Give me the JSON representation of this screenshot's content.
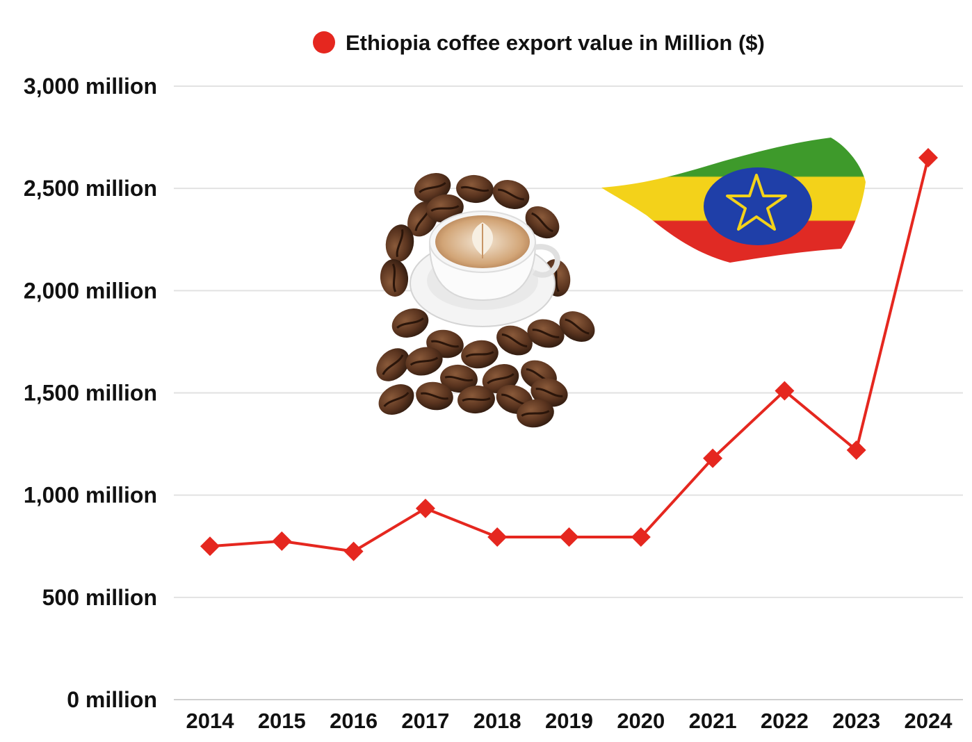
{
  "colors": {
    "series": "#e5271f",
    "grid": "#e2e2e2",
    "text": "#111111"
  },
  "icons": [
    "coffee-cup-with-beans-icon",
    "ethiopia-flag-icon"
  ],
  "chart_data": {
    "type": "line",
    "legend": {
      "label": "Ethiopia coffee export value in Million ($)",
      "position": "top"
    },
    "categories": [
      "2014",
      "2015",
      "2016",
      "2017",
      "2018",
      "2019",
      "2020",
      "2021",
      "2022",
      "2023",
      "2024"
    ],
    "series": [
      {
        "name": "Ethiopia coffee export value in Million ($)",
        "values": [
          750,
          775,
          725,
          935,
          795,
          795,
          795,
          1180,
          1510,
          1220,
          2650
        ]
      }
    ],
    "ylim": [
      0,
      3000
    ],
    "yticks": [
      0,
      500,
      1000,
      1500,
      2000,
      2500,
      3000
    ],
    "ytick_labels": [
      "0 million",
      "500 million",
      "1,000 million",
      "1,500 million",
      "2,000 million",
      "2,500 million",
      "3,000 million"
    ],
    "grid": true,
    "marker": "diamond"
  }
}
